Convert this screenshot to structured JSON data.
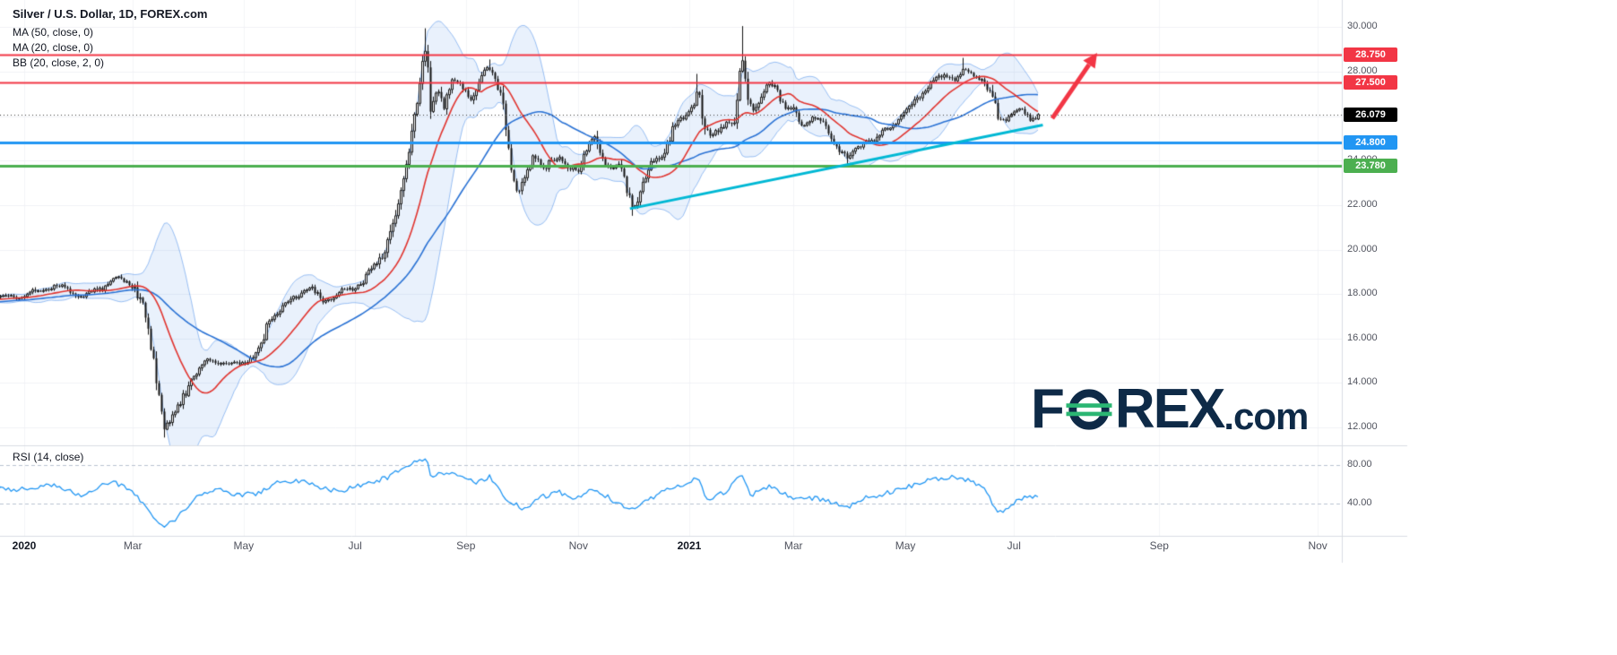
{
  "header": {
    "title": "Silver / U.S. Dollar, 1D, FOREX.com",
    "indicators": [
      "MA (50, close, 0)",
      "MA (20, close, 0)",
      "BB (20, close, 2, 0)"
    ],
    "rsi_label": "RSI (14, close)"
  },
  "watermark": {
    "f": "F",
    "rex": "REX",
    "suffix": ".com"
  },
  "colors": {
    "up": "#ffffff",
    "down": "#111111",
    "wick": "#111111",
    "ma20": "#e0342f",
    "ma50": "#2a72d4",
    "bb_fill": "rgba(41,120,229,0.10)",
    "bb_edge": "rgba(41,120,229,0.45)",
    "grid": "#f0f2f6",
    "grid_v": "#f3f4f7",
    "axis_text": "#50535e",
    "separator": "#d9dce3",
    "last_line": "#3c3c3c",
    "rsi_dash": "#b9c2d0"
  },
  "price_axis": {
    "min": 11.2,
    "max": 30.9,
    "ticks": [
      {
        "value": 30,
        "label": "30.000"
      },
      {
        "value": 28,
        "label": "28.000"
      },
      {
        "value": 26,
        "label": "26.000"
      },
      {
        "value": 24,
        "label": "24.000"
      },
      {
        "value": 22,
        "label": "22.000"
      },
      {
        "value": 20,
        "label": "20.000"
      },
      {
        "value": 18,
        "label": "18.000"
      },
      {
        "value": 16,
        "label": "16.000"
      },
      {
        "value": 14,
        "label": "14.000"
      },
      {
        "value": 12,
        "label": "12.000"
      }
    ]
  },
  "levels": [
    {
      "label": "28.750",
      "value": 28.75,
      "color": "#f23645",
      "width": 2
    },
    {
      "label": "27.500",
      "value": 27.5,
      "color": "#f23645",
      "width": 2
    },
    {
      "label": "24.800",
      "value": 24.8,
      "color": "#2196f3",
      "width": 3
    },
    {
      "label": "23.780",
      "value": 23.78,
      "color": "#4caf50",
      "width": 3
    }
  ],
  "last_price": {
    "label": "26.079",
    "value": 26.079,
    "color": "#000000"
  },
  "time_axis": [
    {
      "label": "2020",
      "t": 0,
      "bold": true
    },
    {
      "label": "Mar",
      "t": 1.96
    },
    {
      "label": "May",
      "t": 3.96
    },
    {
      "label": "Jul",
      "t": 5.97
    },
    {
      "label": "Sep",
      "t": 7.97
    },
    {
      "label": "Nov",
      "t": 10.0
    },
    {
      "label": "2021",
      "t": 12.0,
      "bold": true
    },
    {
      "label": "Mar",
      "t": 13.88
    },
    {
      "label": "May",
      "t": 15.9
    },
    {
      "label": "Jul",
      "t": 17.86
    },
    {
      "label": "Sep",
      "t": 20.48
    },
    {
      "label": "Nov",
      "t": 23.34
    }
  ],
  "chart_data": {
    "type": "candlestick",
    "symbol": "Silver / U.S. Dollar",
    "timeframe": "1D",
    "price_range_visible": [
      11.2,
      30.9
    ],
    "time_range": [
      "Jan 2020",
      "Nov 2021"
    ],
    "price_anchors": [
      [
        -3.0,
        17.4
      ],
      [
        -1.5,
        17.7
      ],
      [
        0.0,
        17.9
      ],
      [
        0.53,
        18.4
      ],
      [
        1.1,
        17.9
      ],
      [
        1.67,
        18.7
      ],
      [
        1.99,
        18.4
      ],
      [
        2.15,
        17.2
      ],
      [
        2.35,
        14.8
      ],
      [
        2.52,
        11.9
      ],
      [
        2.8,
        13.0
      ],
      [
        3.04,
        14.3
      ],
      [
        3.36,
        15.1
      ],
      [
        3.69,
        14.8
      ],
      [
        4.01,
        15.0
      ],
      [
        4.25,
        15.4
      ],
      [
        4.42,
        16.9
      ],
      [
        4.66,
        17.4
      ],
      [
        4.9,
        17.9
      ],
      [
        5.14,
        18.3
      ],
      [
        5.39,
        17.7
      ],
      [
        5.63,
        18.0
      ],
      [
        5.87,
        18.2
      ],
      [
        6.11,
        18.6
      ],
      [
        6.36,
        19.3
      ],
      [
        6.55,
        20.3
      ],
      [
        6.68,
        21.5
      ],
      [
        6.81,
        22.8
      ],
      [
        6.92,
        24.3
      ],
      [
        7.04,
        26.0
      ],
      [
        7.17,
        28.3
      ],
      [
        7.25,
        28.9
      ],
      [
        7.33,
        26.3
      ],
      [
        7.46,
        27.3
      ],
      [
        7.57,
        26.4
      ],
      [
        7.73,
        27.6
      ],
      [
        7.89,
        27.4
      ],
      [
        8.05,
        26.8
      ],
      [
        8.22,
        27.6
      ],
      [
        8.38,
        28.1
      ],
      [
        8.49,
        27.9
      ],
      [
        8.62,
        26.8
      ],
      [
        8.75,
        24.0
      ],
      [
        8.86,
        22.4
      ],
      [
        8.99,
        23.2
      ],
      [
        9.19,
        24.3
      ],
      [
        9.35,
        23.5
      ],
      [
        9.51,
        24.1
      ],
      [
        9.67,
        24.3
      ],
      [
        9.83,
        23.5
      ],
      [
        10.0,
        23.7
      ],
      [
        10.16,
        24.8
      ],
      [
        10.29,
        25.1
      ],
      [
        10.4,
        24.2
      ],
      [
        10.56,
        23.7
      ],
      [
        10.72,
        23.9
      ],
      [
        10.88,
        22.6
      ],
      [
        10.97,
        21.9
      ],
      [
        11.08,
        22.4
      ],
      [
        11.21,
        23.3
      ],
      [
        11.37,
        24.0
      ],
      [
        11.53,
        24.2
      ],
      [
        11.69,
        25.4
      ],
      [
        11.86,
        25.8
      ],
      [
        12.02,
        26.3
      ],
      [
        12.15,
        27.3
      ],
      [
        12.26,
        25.6
      ],
      [
        12.39,
        25.0
      ],
      [
        12.5,
        25.3
      ],
      [
        12.66,
        25.8
      ],
      [
        12.83,
        25.5
      ],
      [
        12.94,
        28.9
      ],
      [
        13.04,
        26.9
      ],
      [
        13.15,
        26.3
      ],
      [
        13.31,
        27.0
      ],
      [
        13.44,
        27.4
      ],
      [
        13.55,
        27.3
      ],
      [
        13.71,
        26.4
      ],
      [
        13.88,
        26.2
      ],
      [
        14.04,
        25.5
      ],
      [
        14.2,
        26.0
      ],
      [
        14.36,
        25.7
      ],
      [
        14.52,
        25.3
      ],
      [
        14.69,
        24.6
      ],
      [
        14.85,
        24.0
      ],
      [
        15.01,
        24.5
      ],
      [
        15.17,
        25.0
      ],
      [
        15.33,
        24.8
      ],
      [
        15.49,
        25.4
      ],
      [
        15.66,
        25.6
      ],
      [
        15.82,
        25.9
      ],
      [
        15.98,
        26.4
      ],
      [
        16.14,
        26.9
      ],
      [
        16.3,
        27.3
      ],
      [
        16.46,
        27.6
      ],
      [
        16.63,
        27.9
      ],
      [
        16.79,
        27.6
      ],
      [
        16.95,
        28.0
      ],
      [
        17.11,
        27.9
      ],
      [
        17.27,
        27.7
      ],
      [
        17.43,
        27.0
      ],
      [
        17.55,
        26.0
      ],
      [
        17.68,
        25.9
      ],
      [
        17.84,
        26.1
      ],
      [
        18.0,
        26.2
      ],
      [
        18.16,
        25.9
      ],
      [
        18.29,
        26.079
      ]
    ],
    "wick_events": [
      {
        "t": 2.52,
        "low": 11.55
      },
      {
        "t": 7.25,
        "high": 29.95
      },
      {
        "t": 8.38,
        "high": 28.55
      },
      {
        "t": 10.97,
        "low": 21.52
      },
      {
        "t": 12.15,
        "high": 27.9
      },
      {
        "t": 12.94,
        "high": 30.05
      },
      {
        "t": 14.85,
        "low": 23.74
      },
      {
        "t": 16.95,
        "high": 28.62
      }
    ],
    "series": [
      {
        "name": "MA(50)",
        "color": "#2a72d4"
      },
      {
        "name": "MA(20)",
        "color": "#e0342f"
      },
      {
        "name": "BB(20, 2)",
        "color": "rgba(41,120,229,0.45)"
      }
    ],
    "trendline": {
      "t1": 10.93,
      "p1": 21.84,
      "t2": 18.38,
      "p2": 25.6,
      "color": "#00b8d4",
      "width": 3
    },
    "arrow": {
      "t1": 18.55,
      "p1": 25.9,
      "t2": 19.36,
      "p2": 28.85,
      "color": "#f23645",
      "width": 5
    },
    "rsi": {
      "color": "#2196f3",
      "bands": [
        {
          "value": 80,
          "label": "80.00"
        },
        {
          "value": 40,
          "label": "40.00"
        }
      ],
      "anchors": [
        [
          -3,
          54
        ],
        [
          0,
          55
        ],
        [
          0.5,
          60
        ],
        [
          1.0,
          49
        ],
        [
          1.55,
          63
        ],
        [
          1.85,
          57
        ],
        [
          2.15,
          40
        ],
        [
          2.52,
          14
        ],
        [
          2.8,
          28
        ],
        [
          3.1,
          46
        ],
        [
          3.5,
          55
        ],
        [
          3.85,
          49
        ],
        [
          4.2,
          50
        ],
        [
          4.55,
          61
        ],
        [
          5.0,
          64
        ],
        [
          5.35,
          56
        ],
        [
          5.7,
          53
        ],
        [
          6.1,
          60
        ],
        [
          6.55,
          67
        ],
        [
          6.92,
          79
        ],
        [
          7.24,
          88
        ],
        [
          7.35,
          68
        ],
        [
          7.6,
          73
        ],
        [
          7.9,
          66
        ],
        [
          8.2,
          62
        ],
        [
          8.4,
          68
        ],
        [
          8.75,
          42
        ],
        [
          9.0,
          35
        ],
        [
          9.35,
          47
        ],
        [
          9.65,
          52
        ],
        [
          9.95,
          43
        ],
        [
          10.2,
          56
        ],
        [
          10.55,
          46
        ],
        [
          10.9,
          33
        ],
        [
          11.25,
          44
        ],
        [
          11.7,
          58
        ],
        [
          12.02,
          62
        ],
        [
          12.15,
          68
        ],
        [
          12.3,
          44
        ],
        [
          12.65,
          52
        ],
        [
          12.94,
          72
        ],
        [
          13.1,
          48
        ],
        [
          13.45,
          58
        ],
        [
          13.8,
          47
        ],
        [
          14.2,
          46
        ],
        [
          14.6,
          41
        ],
        [
          14.85,
          36
        ],
        [
          15.2,
          46
        ],
        [
          15.65,
          52
        ],
        [
          16.0,
          58
        ],
        [
          16.45,
          66
        ],
        [
          16.8,
          68
        ],
        [
          17.1,
          63
        ],
        [
          17.35,
          55
        ],
        [
          17.55,
          30
        ],
        [
          17.75,
          36
        ],
        [
          18.0,
          46
        ],
        [
          18.29,
          49
        ]
      ]
    }
  }
}
